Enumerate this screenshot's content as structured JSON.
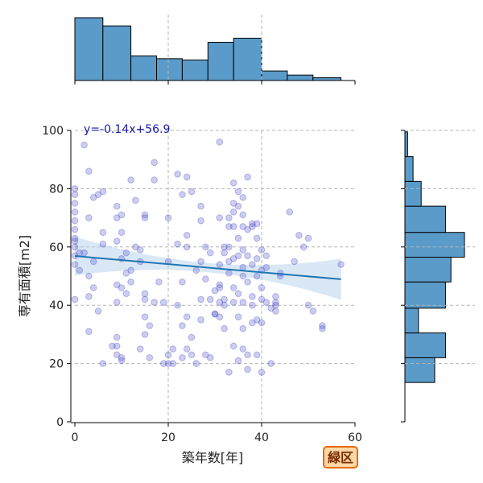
{
  "chart_data": {
    "type": "scatter",
    "xlabel": "築年数[年]",
    "ylabel": "専有面積[m2]",
    "xlim": [
      0,
      60
    ],
    "ylim": [
      0,
      100
    ],
    "xticks": [
      "0",
      "20",
      "40",
      "60"
    ],
    "yticks": [
      "0",
      "20",
      "40",
      "60",
      "80",
      "100"
    ],
    "grid": true,
    "annotation": "y=-0.14x+56.9",
    "badge": "緑区",
    "colors": {
      "points": "#4a4ac8",
      "regression": "#1f77b4",
      "band": "#aecde8",
      "hist": "#5a9bc9",
      "badge_fill": "#fbd8a6",
      "badge_border": "#e86a10"
    },
    "regression": {
      "slope": -0.14,
      "intercept": 56.9,
      "x_range": [
        0,
        57
      ]
    },
    "points": [
      [
        2,
        95
      ],
      [
        0,
        78
      ],
      [
        0,
        75
      ],
      [
        0,
        72
      ],
      [
        0,
        69
      ],
      [
        0,
        66
      ],
      [
        0,
        63
      ],
      [
        0,
        60
      ],
      [
        0,
        57
      ],
      [
        0,
        54
      ],
      [
        0,
        42
      ],
      [
        0,
        62
      ],
      [
        1,
        52
      ],
      [
        0,
        80
      ],
      [
        3,
        86
      ],
      [
        3,
        70
      ],
      [
        2,
        58
      ],
      [
        1,
        58
      ],
      [
        4,
        55
      ],
      [
        3,
        50
      ],
      [
        4,
        46
      ],
      [
        3,
        31
      ],
      [
        3,
        43
      ],
      [
        6,
        79
      ],
      [
        5,
        78
      ],
      [
        4,
        77
      ],
      [
        6,
        65
      ],
      [
        6,
        61
      ],
      [
        5,
        38
      ],
      [
        6,
        20
      ],
      [
        9,
        74
      ],
      [
        10,
        71
      ],
      [
        9,
        70
      ],
      [
        10,
        65
      ],
      [
        9,
        62
      ],
      [
        11,
        58
      ],
      [
        10,
        56
      ],
      [
        11,
        51
      ],
      [
        12,
        52
      ],
      [
        9,
        47
      ],
      [
        10,
        46
      ],
      [
        11,
        44
      ],
      [
        9,
        41
      ],
      [
        9,
        29
      ],
      [
        9,
        26
      ],
      [
        9,
        23
      ],
      [
        10,
        22
      ],
      [
        10,
        21
      ],
      [
        8,
        26
      ],
      [
        12,
        48
      ],
      [
        12,
        83
      ],
      [
        13,
        76
      ],
      [
        13,
        60
      ],
      [
        15,
        71
      ],
      [
        15,
        70
      ],
      [
        14,
        59
      ],
      [
        14,
        55
      ],
      [
        15,
        44
      ],
      [
        15,
        42
      ],
      [
        15,
        36
      ],
      [
        15,
        30
      ],
      [
        16,
        33
      ],
      [
        14,
        25
      ],
      [
        16,
        22
      ],
      [
        17,
        89
      ],
      [
        17,
        83
      ],
      [
        19,
        41
      ],
      [
        17,
        41
      ],
      [
        20,
        70
      ],
      [
        20,
        23
      ],
      [
        19,
        20
      ],
      [
        20,
        20
      ],
      [
        21,
        20
      ],
      [
        21,
        25
      ],
      [
        22,
        85
      ],
      [
        22,
        61
      ],
      [
        23,
        78
      ],
      [
        24,
        84
      ],
      [
        24,
        64
      ],
      [
        25,
        79
      ],
      [
        23,
        48
      ],
      [
        24,
        60
      ],
      [
        22,
        40
      ],
      [
        23,
        33
      ],
      [
        24,
        36
      ],
      [
        24,
        25
      ],
      [
        25,
        29
      ],
      [
        25,
        23
      ],
      [
        26,
        20
      ],
      [
        23,
        22
      ],
      [
        27,
        74
      ],
      [
        27,
        69
      ],
      [
        28,
        60
      ],
      [
        27,
        55
      ],
      [
        27,
        42
      ],
      [
        28,
        49
      ],
      [
        29,
        42
      ],
      [
        30,
        45
      ],
      [
        30,
        37
      ],
      [
        29,
        22
      ],
      [
        28,
        23
      ],
      [
        31,
        96
      ],
      [
        31,
        70
      ],
      [
        32,
        60
      ],
      [
        32,
        58
      ],
      [
        31,
        54
      ],
      [
        31,
        47
      ],
      [
        31,
        46
      ],
      [
        32,
        42
      ],
      [
        31,
        41
      ],
      [
        32,
        40
      ],
      [
        31,
        36
      ],
      [
        32,
        32
      ],
      [
        33,
        70
      ],
      [
        33,
        67
      ],
      [
        34,
        82
      ],
      [
        34,
        75
      ],
      [
        34,
        72
      ],
      [
        34,
        67
      ],
      [
        33,
        60
      ],
      [
        34,
        56
      ],
      [
        33,
        55
      ],
      [
        33,
        51
      ],
      [
        34,
        46
      ],
      [
        34,
        41
      ],
      [
        34,
        26
      ],
      [
        33,
        17
      ],
      [
        35,
        79
      ],
      [
        35,
        74
      ],
      [
        36,
        77
      ],
      [
        36,
        71
      ],
      [
        36,
        67
      ],
      [
        36,
        59
      ],
      [
        35,
        57
      ],
      [
        36,
        53
      ],
      [
        36,
        50
      ],
      [
        35,
        44
      ],
      [
        36,
        41
      ],
      [
        35,
        36
      ],
      [
        36,
        32
      ],
      [
        36,
        25
      ],
      [
        35,
        21
      ],
      [
        37,
        84
      ],
      [
        37,
        66
      ],
      [
        38,
        68
      ],
      [
        37,
        57
      ],
      [
        38,
        54
      ],
      [
        37,
        48
      ],
      [
        38,
        43
      ],
      [
        38,
        40
      ],
      [
        38,
        34
      ],
      [
        37,
        18
      ],
      [
        37,
        23
      ],
      [
        39,
        68
      ],
      [
        39,
        63
      ],
      [
        40,
        59
      ],
      [
        39,
        56
      ],
      [
        40,
        52
      ],
      [
        39,
        50
      ],
      [
        40,
        46
      ],
      [
        40,
        42
      ],
      [
        39,
        35
      ],
      [
        40,
        34
      ],
      [
        39,
        23
      ],
      [
        40,
        17
      ],
      [
        41,
        57
      ],
      [
        41,
        53
      ],
      [
        41,
        41
      ],
      [
        42,
        39
      ],
      [
        42,
        20
      ],
      [
        43,
        43
      ],
      [
        43,
        41
      ],
      [
        43,
        40
      ],
      [
        43,
        38
      ],
      [
        44,
        50
      ],
      [
        46,
        72
      ],
      [
        48,
        64
      ],
      [
        49,
        60
      ],
      [
        50,
        63
      ],
      [
        50,
        40
      ],
      [
        51,
        38
      ],
      [
        53,
        33
      ],
      [
        53,
        32
      ],
      [
        57,
        54
      ],
      [
        30,
        37
      ],
      [
        26,
        52
      ],
      [
        29,
        58
      ],
      [
        38,
        67
      ],
      [
        44,
        51
      ],
      [
        47,
        55
      ],
      [
        20,
        55
      ],
      [
        18,
        48
      ],
      [
        27,
        35
      ],
      [
        35,
        63
      ]
    ],
    "marginal_x": {
      "bins": [
        [
          0,
          6
        ],
        [
          6,
          12
        ],
        [
          12,
          17.5
        ],
        [
          17.5,
          23
        ],
        [
          23,
          28.5
        ],
        [
          28.5,
          34
        ],
        [
          34,
          40
        ],
        [
          40,
          45.5
        ],
        [
          45.5,
          51
        ],
        [
          51,
          57
        ]
      ],
      "counts": [
        46,
        40,
        18,
        16,
        15,
        28,
        31,
        7,
        4,
        2
      ]
    },
    "marginal_y": {
      "bins": [
        [
          13.5,
          22
        ],
        [
          22,
          30.5
        ],
        [
          30.5,
          39
        ],
        [
          39,
          48
        ],
        [
          48,
          56.5
        ],
        [
          56.5,
          65
        ],
        [
          65,
          74
        ],
        [
          74,
          82.5
        ],
        [
          82.5,
          91
        ],
        [
          91,
          99.5
        ]
      ],
      "counts": [
        11,
        15,
        5,
        15,
        17,
        22,
        15,
        6,
        3,
        1
      ]
    }
  }
}
